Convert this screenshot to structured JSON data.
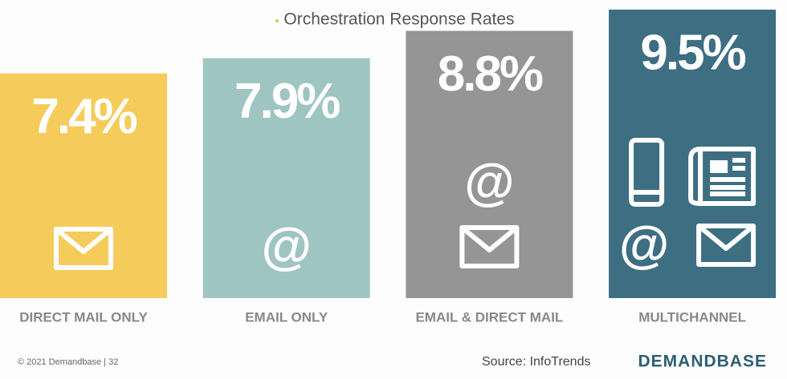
{
  "chart_data": {
    "type": "bar",
    "title": "Orchestration Response Rates",
    "categories": [
      "DIRECT MAIL ONLY",
      "EMAIL ONLY",
      "EMAIL & DIRECT MAIL",
      "MULTICHANNEL"
    ],
    "values": [
      7.4,
      7.9,
      8.8,
      9.5
    ],
    "value_labels": [
      "7.4%",
      "7.9%",
      "8.8%",
      "9.5%"
    ],
    "colors": [
      "#f5cc5c",
      "#9fc5c2",
      "#959595",
      "#3d6e81"
    ],
    "source": "Source: InfoTrends",
    "footer": "© 2021 Demandbase | 32",
    "brand": "DEMANDBASE"
  }
}
